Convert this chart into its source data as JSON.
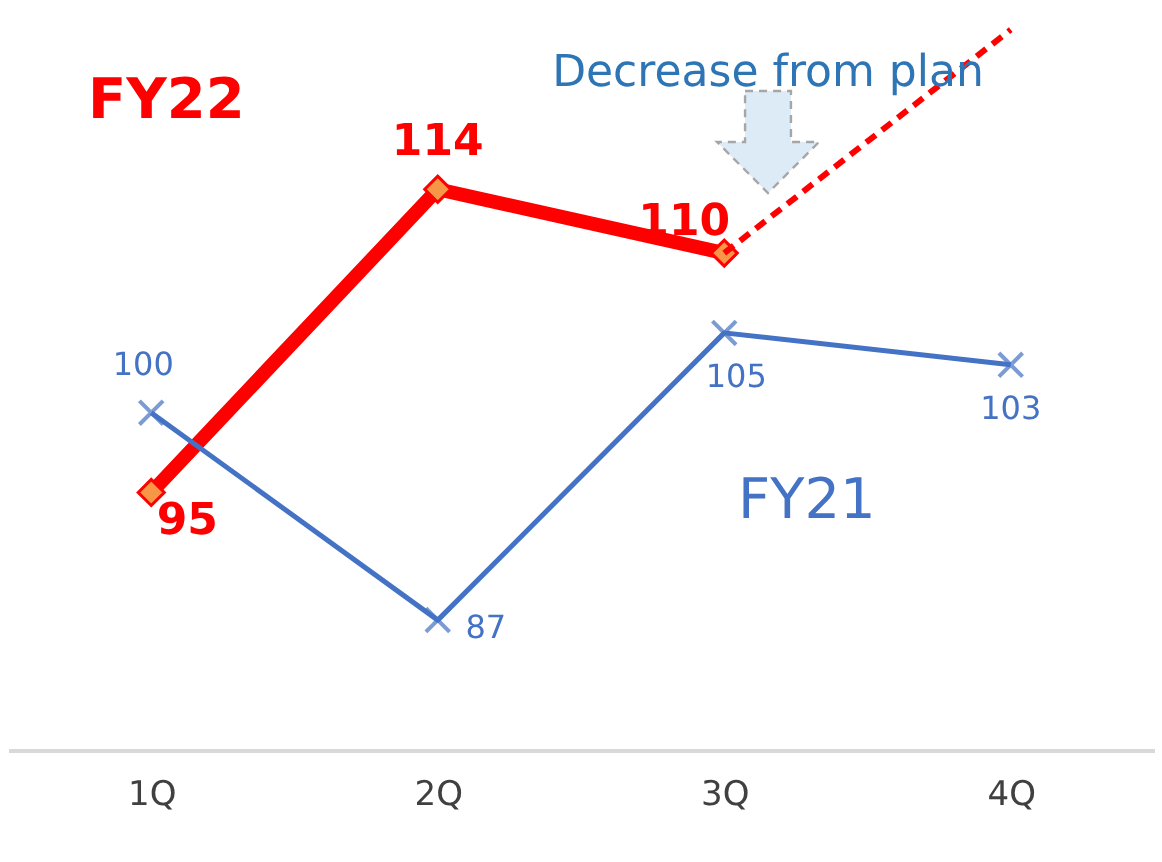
{
  "chart_data": {
    "type": "line",
    "categories": [
      "1Q",
      "2Q",
      "3Q",
      "4Q"
    ],
    "legend": false,
    "annotations": [
      "Decrease from plan"
    ],
    "series": [
      {
        "name": "FY22",
        "color": "#ff0000",
        "values": [
          95,
          114,
          110,
          null
        ],
        "marker": "diamond",
        "data_labels": true
      },
      {
        "color": "#ff0000",
        "values": [
          null,
          null,
          110,
          124
        ],
        "line_style": "dashed",
        "marker": "none"
      },
      {
        "name": "FY21",
        "color": "#4472c4",
        "values": [
          100,
          87,
          105,
          103
        ],
        "marker": "cross",
        "data_labels": true
      }
    ]
  }
}
